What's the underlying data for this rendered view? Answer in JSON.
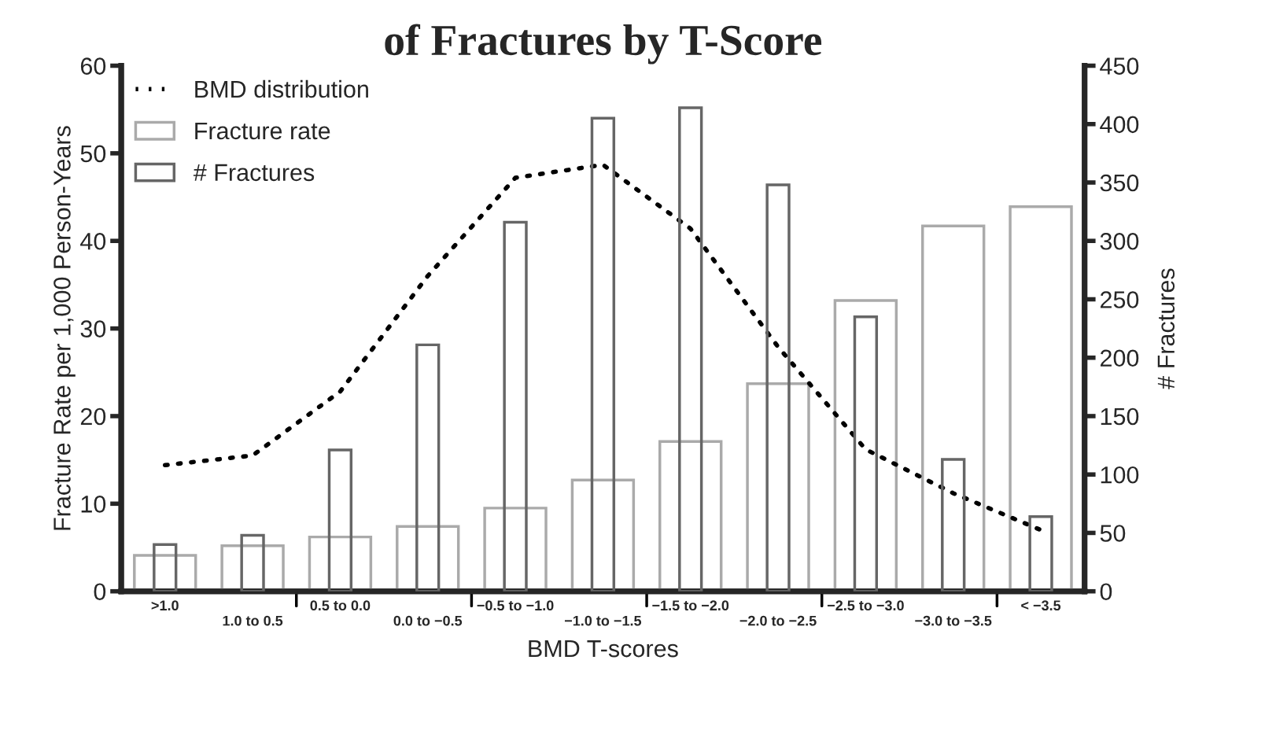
{
  "chart_data": {
    "type": "bar",
    "title": "of Fractures by T-Score",
    "xlabel": "BMD T-scores",
    "ylabel": "Fracture Rate per 1,000 Person-Years",
    "y2label": "# Fractures",
    "categories": [
      ">1.0",
      "1.0 to 0.5",
      "0.5 to 0.0",
      "0.0 to −0.5",
      "−0.5 to −1.0",
      "−1.0 to −1.5",
      "−1.5 to −2.0",
      "−2.0 to −2.5",
      "−2.5 to −3.0",
      "−3.0 to −3.5",
      "< −3.5"
    ],
    "series": [
      {
        "name": "BMD distribution",
        "type": "line",
        "color": "#000000",
        "line_style": "dotted",
        "values": [
          14.4,
          15.5,
          22.8,
          36.0,
          47.2,
          48.7,
          41.4,
          27.9,
          16.2,
          11.2,
          7.0
        ]
      },
      {
        "name": "Fracture rate",
        "color": "#aaaaaa",
        "values": [
          4.1,
          5.2,
          6.2,
          7.4,
          9.5,
          12.7,
          17.1,
          23.7,
          33.2,
          41.7,
          43.9
        ]
      },
      {
        "name": "# Fractures",
        "axis": "y2",
        "color": "#666666",
        "values": [
          40,
          48,
          121,
          211,
          316,
          405,
          414,
          348,
          235,
          113,
          64
        ]
      }
    ],
    "ylim": [
      0,
      60
    ],
    "yticks": [
      0,
      10,
      20,
      30,
      40,
      50,
      60
    ],
    "y2lim": [
      0,
      450
    ],
    "y2ticks": [
      0,
      50,
      100,
      150,
      200,
      250,
      300,
      350,
      400,
      450
    ],
    "legend": "top left",
    "grid": false
  }
}
